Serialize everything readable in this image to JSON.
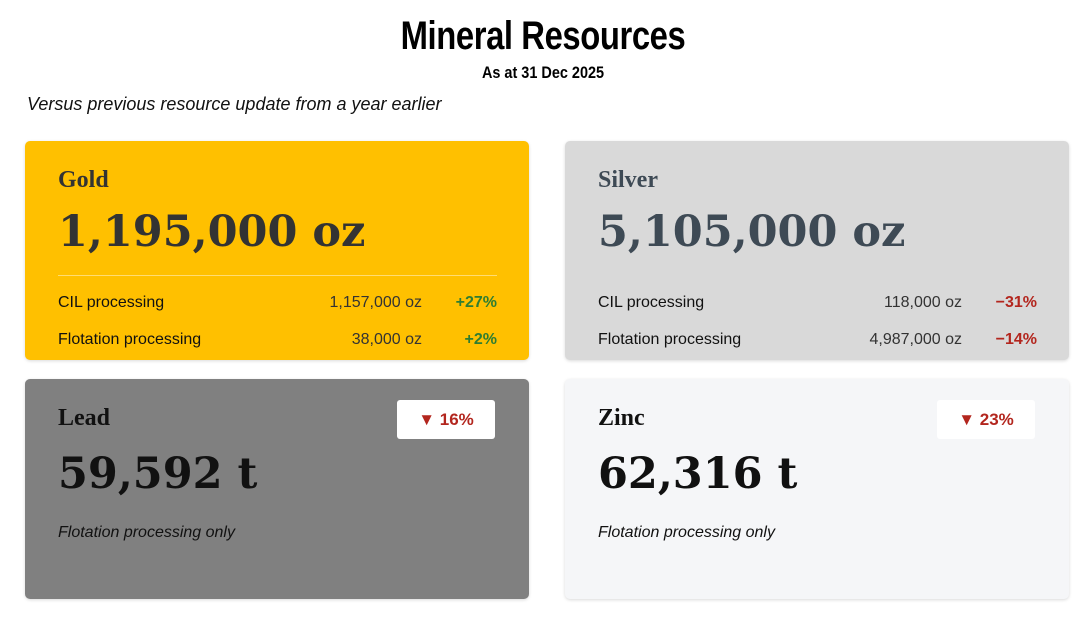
{
  "header": {
    "title": "Mineral Resources",
    "subtitle": "As at 31 Dec 2025",
    "note": "Versus previous resource update from a year earlier"
  },
  "cards": [
    {
      "name": "Gold",
      "total": "1,195,000 oz",
      "rows": [
        {
          "label": "CIL processing",
          "value": "1,157,000 oz",
          "change": "+27%"
        },
        {
          "label": "Flotation processing",
          "value": "38,000 oz",
          "change": "+2%"
        }
      ]
    },
    {
      "name": "Silver",
      "total": "5,105,000 oz",
      "rows": [
        {
          "label": "CIL processing",
          "value": "118,000 oz",
          "change": "−31%"
        },
        {
          "label": "Flotation processing",
          "value": "4,987,000 oz",
          "change": "−14%"
        }
      ]
    },
    {
      "name": "Lead",
      "total": "59,592 t",
      "badge": "▼ 16%",
      "footnote": "Flotation processing only"
    },
    {
      "name": "Zinc",
      "total": "62,316 t",
      "badge": "▼ 23%",
      "footnote": "Flotation processing only"
    }
  ]
}
